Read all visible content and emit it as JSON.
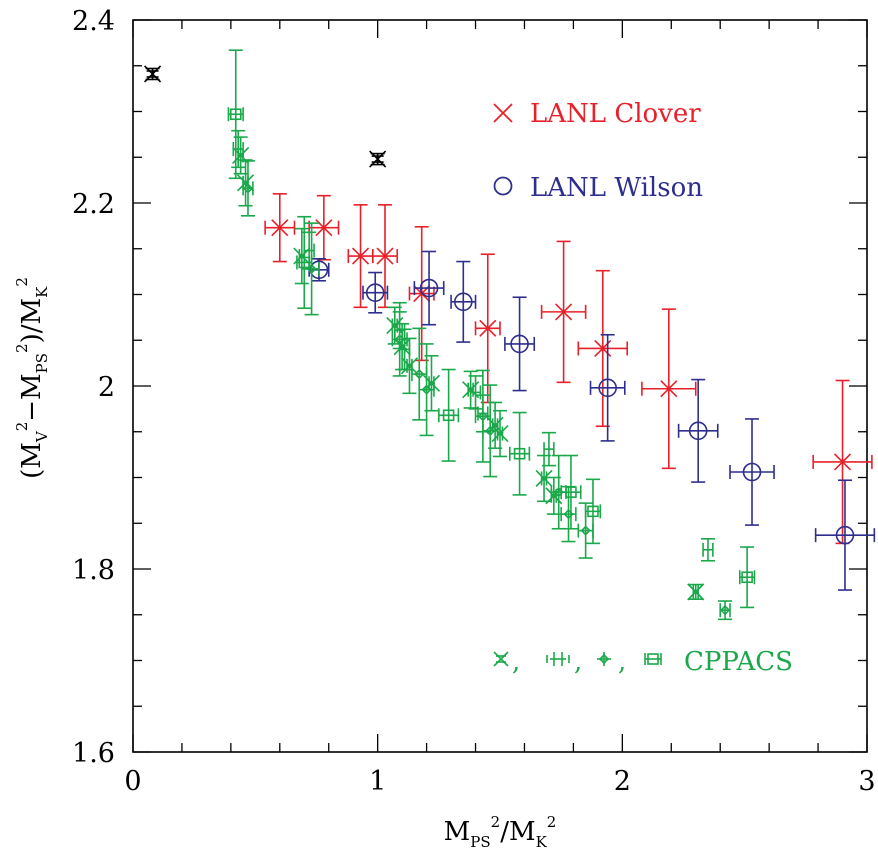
{
  "chart_data": {
    "type": "scatter",
    "xlim": [
      0,
      3
    ],
    "ylim": [
      1.6,
      2.4
    ],
    "xticks": [
      "0",
      "1",
      "2",
      "3"
    ],
    "yticks": [
      "1.6",
      "1.8",
      "2",
      "2.2",
      "2.4"
    ],
    "xlabel": {
      "base": "M",
      "sub1": "PS",
      "sup1": "2",
      "mid": "/M",
      "sub2": "K",
      "sup2": "2"
    },
    "ylabel": {
      "p1": "(M",
      "sub1": "V",
      "sup1": "2",
      "mid": "−M",
      "sub2": "PS",
      "sup2": "2",
      "p2": ")/M",
      "sub3": "K",
      "sup3": "2"
    },
    "colors": {
      "clover": "#e8202a",
      "wilson": "#2e2e8e",
      "cppacs": "#1aa84a",
      "black": "#000000"
    },
    "legend": {
      "clover": "LANL Clover",
      "wilson": "LANL Wilson",
      "cppacs": "CPPACS",
      "sep": ","
    },
    "series": [
      {
        "name": "LANL Clover",
        "marker": "x",
        "color": "clover",
        "points": [
          {
            "x": 0.6,
            "y": 2.173,
            "xerr": 0.06,
            "yerr": 0.037
          },
          {
            "x": 0.78,
            "y": 2.173,
            "xerr": 0.06,
            "yerr": 0.035
          },
          {
            "x": 0.93,
            "y": 2.142,
            "xerr": 0.05,
            "yerr": 0.056
          },
          {
            "x": 1.03,
            "y": 2.142,
            "xerr": 0.05,
            "yerr": 0.056
          },
          {
            "x": 1.18,
            "y": 2.101,
            "xerr": 0.05,
            "yerr": 0.073
          },
          {
            "x": 1.45,
            "y": 2.063,
            "xerr": 0.05,
            "yerr": 0.081
          },
          {
            "x": 1.76,
            "y": 2.081,
            "xerr": 0.09,
            "yerr": 0.077
          },
          {
            "x": 1.92,
            "y": 2.041,
            "xerr": 0.1,
            "yerr": 0.085
          },
          {
            "x": 2.19,
            "y": 1.997,
            "xerr": 0.11,
            "yerr": 0.087
          },
          {
            "x": 2.9,
            "y": 1.917,
            "xerr": 0.12,
            "yerr": 0.089
          }
        ]
      },
      {
        "name": "LANL Wilson",
        "marker": "circle",
        "color": "wilson",
        "points": [
          {
            "x": 0.76,
            "y": 2.127,
            "xerr": 0.04,
            "yerr": 0.012
          },
          {
            "x": 0.99,
            "y": 2.102,
            "xerr": 0.05,
            "yerr": 0.022
          },
          {
            "x": 1.21,
            "y": 2.107,
            "xerr": 0.06,
            "yerr": 0.04
          },
          {
            "x": 1.35,
            "y": 2.092,
            "xerr": 0.05,
            "yerr": 0.044
          },
          {
            "x": 1.58,
            "y": 2.046,
            "xerr": 0.06,
            "yerr": 0.051
          },
          {
            "x": 1.94,
            "y": 1.998,
            "xerr": 0.07,
            "yerr": 0.058
          },
          {
            "x": 2.31,
            "y": 1.951,
            "xerr": 0.08,
            "yerr": 0.056
          },
          {
            "x": 2.53,
            "y": 1.906,
            "xerr": 0.09,
            "yerr": 0.058
          },
          {
            "x": 2.91,
            "y": 1.837,
            "xerr": 0.12,
            "yerr": 0.06
          }
        ]
      },
      {
        "name": "CPPACS",
        "marker": "x",
        "color": "cppacs",
        "points": [
          {
            "x": 0.44,
            "y": 2.252,
            "xerr": 0.01,
            "yerr": 0.02
          },
          {
            "x": 0.46,
            "y": 2.222,
            "xerr": 0.01,
            "yerr": 0.025
          },
          {
            "x": 0.69,
            "y": 2.142,
            "xerr": 0.01,
            "yerr": 0.03
          },
          {
            "x": 1.07,
            "y": 2.066,
            "xerr": 0.01,
            "yerr": 0.02
          },
          {
            "x": 1.1,
            "y": 2.043,
            "xerr": 0.01,
            "yerr": 0.025
          },
          {
            "x": 1.13,
            "y": 2.022,
            "xerr": 0.01,
            "yerr": 0.03
          },
          {
            "x": 1.22,
            "y": 2.003,
            "xerr": 0.01,
            "yerr": 0.03
          },
          {
            "x": 1.38,
            "y": 1.996,
            "xerr": 0.01,
            "yerr": 0.02
          },
          {
            "x": 1.48,
            "y": 1.957,
            "xerr": 0.01,
            "yerr": 0.025
          },
          {
            "x": 1.5,
            "y": 1.948,
            "xerr": 0.01,
            "yerr": 0.025
          },
          {
            "x": 1.68,
            "y": 1.899,
            "xerr": 0.01,
            "yerr": 0.025
          },
          {
            "x": 1.72,
            "y": 1.88,
            "xerr": 0.01,
            "yerr": 0.02
          },
          {
            "x": 2.3,
            "y": 1.775,
            "xerr": 0.01,
            "yerr": 0.008
          }
        ]
      },
      {
        "name": "CPPACS",
        "marker": "cross",
        "color": "cppacs",
        "points": [
          {
            "x": 0.43,
            "y": 2.259,
            "xerr": 0.02,
            "yerr": 0.02
          },
          {
            "x": 0.72,
            "y": 2.148,
            "xerr": 0.02,
            "yerr": 0.02
          },
          {
            "x": 1.09,
            "y": 2.061,
            "xerr": 0.02,
            "yerr": 0.02
          },
          {
            "x": 1.11,
            "y": 2.04,
            "xerr": 0.02,
            "yerr": 0.022
          },
          {
            "x": 1.4,
            "y": 1.993,
            "xerr": 0.02,
            "yerr": 0.018
          },
          {
            "x": 1.43,
            "y": 1.97,
            "xerr": 0.02,
            "yerr": 0.02
          },
          {
            "x": 1.7,
            "y": 1.931,
            "xerr": 0.02,
            "yerr": 0.018
          },
          {
            "x": 2.35,
            "y": 1.821,
            "xerr": 0.02,
            "yerr": 0.012
          }
        ]
      },
      {
        "name": "CPPACS",
        "marker": "diamond",
        "color": "cppacs",
        "points": [
          {
            "x": 0.47,
            "y": 2.216,
            "xerr": 0.02,
            "yerr": 0.03
          },
          {
            "x": 0.73,
            "y": 2.128,
            "xerr": 0.03,
            "yerr": 0.05
          },
          {
            "x": 1.09,
            "y": 2.051,
            "xerr": 0.03,
            "yerr": 0.04
          },
          {
            "x": 1.17,
            "y": 2.013,
            "xerr": 0.03,
            "yerr": 0.05
          },
          {
            "x": 1.2,
            "y": 1.996,
            "xerr": 0.03,
            "yerr": 0.05
          },
          {
            "x": 1.43,
            "y": 1.967,
            "xerr": 0.03,
            "yerr": 0.05
          },
          {
            "x": 1.46,
            "y": 1.951,
            "xerr": 0.03,
            "yerr": 0.05
          },
          {
            "x": 1.74,
            "y": 1.884,
            "xerr": 0.03,
            "yerr": 0.04
          },
          {
            "x": 1.78,
            "y": 1.86,
            "xerr": 0.03,
            "yerr": 0.03
          },
          {
            "x": 1.85,
            "y": 1.842,
            "xerr": 0.03,
            "yerr": 0.03
          },
          {
            "x": 2.42,
            "y": 1.755,
            "xerr": 0.02,
            "yerr": 0.01
          }
        ]
      },
      {
        "name": "CPPACS",
        "marker": "square",
        "color": "cppacs",
        "points": [
          {
            "x": 0.42,
            "y": 2.297,
            "xerr": 0.03,
            "yerr": 0.07
          },
          {
            "x": 0.7,
            "y": 2.135,
            "xerr": 0.03,
            "yerr": 0.05
          },
          {
            "x": 1.29,
            "y": 1.968,
            "xerr": 0.04,
            "yerr": 0.05
          },
          {
            "x": 1.58,
            "y": 1.926,
            "xerr": 0.04,
            "yerr": 0.045
          },
          {
            "x": 1.79,
            "y": 1.884,
            "xerr": 0.04,
            "yerr": 0.04
          },
          {
            "x": 1.88,
            "y": 1.863,
            "xerr": 0.03,
            "yerr": 0.035
          },
          {
            "x": 2.51,
            "y": 1.791,
            "xerr": 0.03,
            "yerr": 0.033
          }
        ]
      },
      {
        "name": "",
        "marker": "starx",
        "color": "black",
        "points": [
          {
            "x": 0.08,
            "y": 2.341,
            "xerr": 0,
            "yerr": 0.006
          },
          {
            "x": 1.0,
            "y": 2.248,
            "xerr": 0,
            "yerr": 0.006
          }
        ]
      }
    ]
  }
}
